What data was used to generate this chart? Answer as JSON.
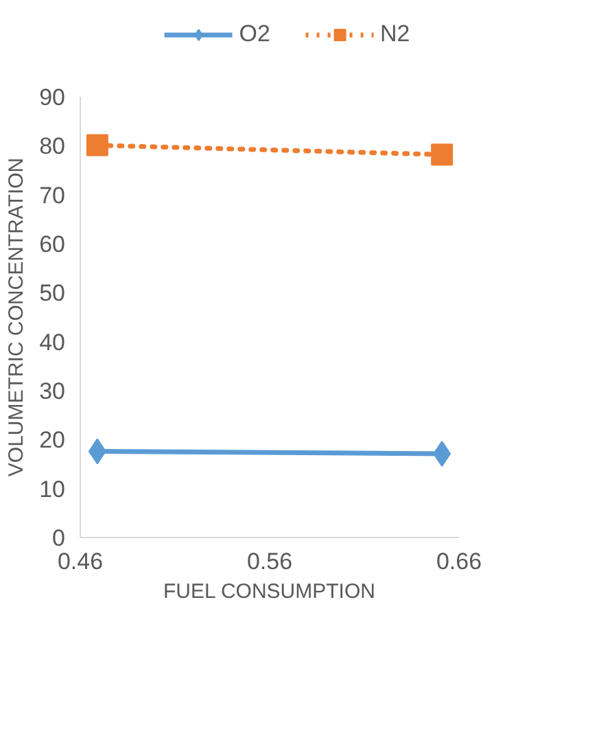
{
  "chart_data": {
    "type": "line",
    "xlabel": "FUEL CONSUMPTION",
    "ylabel": "VOLUMETRIC CONCENTRATION",
    "x": [
      0.469,
      0.651
    ],
    "series": [
      {
        "name": "O2",
        "color": "#5b9bd5",
        "values": [
          17.6,
          17.1
        ],
        "marker": "diamond",
        "line_style": "solid"
      },
      {
        "name": "N2",
        "color": "#ed7d31",
        "values": [
          80.1,
          78.2
        ],
        "marker": "square",
        "line_style": "dotted"
      }
    ],
    "xlim": [
      0.46,
      0.66
    ],
    "xticks": [
      0.46,
      0.56,
      0.66
    ],
    "ylim": [
      0,
      90
    ],
    "yticks": [
      0,
      10,
      20,
      30,
      40,
      50,
      60,
      70,
      80,
      90
    ],
    "grid": false,
    "legend": "top"
  }
}
